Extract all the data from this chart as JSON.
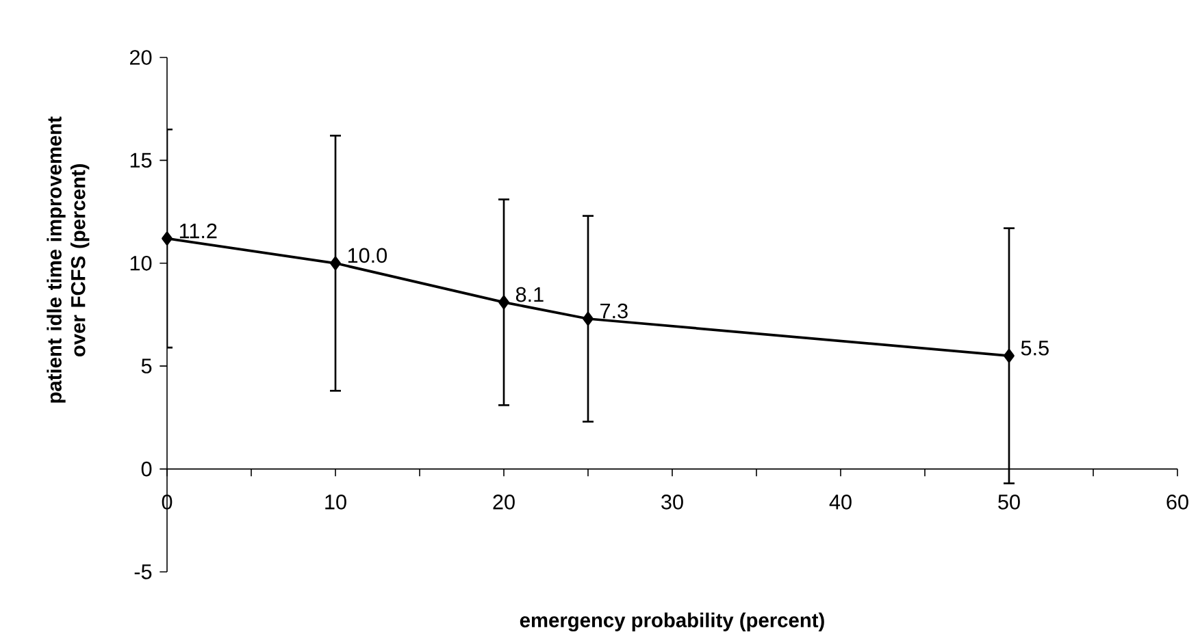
{
  "chart_data": {
    "type": "line",
    "xlabel": "emergency probability (percent)",
    "ylabel": "patient idle time improvement over FCFS (percent)",
    "x": [
      0,
      10,
      20,
      25,
      50
    ],
    "values": [
      11.2,
      10.0,
      8.1,
      7.3,
      5.5
    ],
    "errors": [
      5.3,
      6.2,
      5.0,
      5.0,
      6.2
    ],
    "value_labels": [
      "11.2",
      "10.0",
      "8.1",
      "7.3",
      "5.5"
    ],
    "color": "#000000",
    "marker": "diamond",
    "line_style": "solid",
    "xlim": [
      0,
      60
    ],
    "ylim": [
      -5,
      20
    ],
    "xticks": [
      0,
      {
        "value": 5,
        "label": null
      },
      10,
      {
        "value": 15,
        "label": null
      },
      20,
      {
        "value": 25,
        "label": null
      },
      30,
      {
        "value": 35,
        "label": null
      },
      40,
      {
        "value": 45,
        "label": null
      },
      50,
      {
        "value": 55,
        "label": null
      },
      60
    ],
    "yticks": [
      -5,
      0,
      5,
      10,
      15,
      20
    ]
  }
}
